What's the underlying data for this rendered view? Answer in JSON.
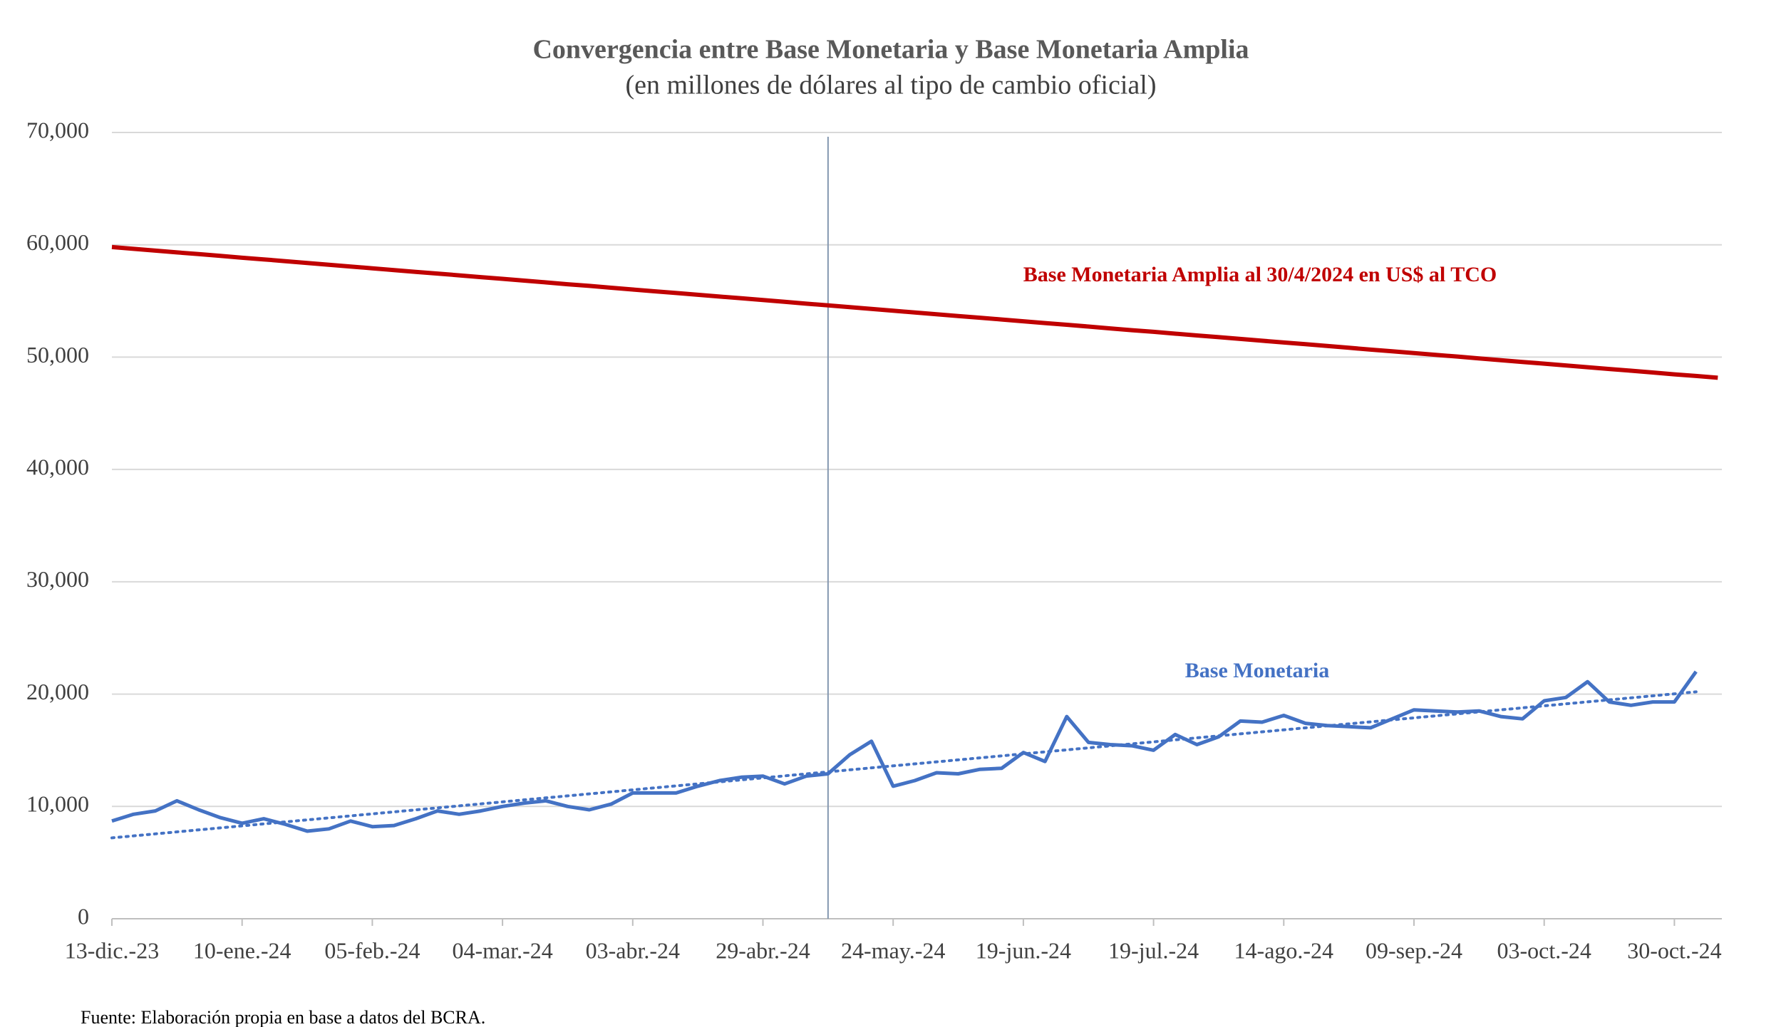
{
  "chart_data": {
    "type": "line",
    "title": "Convergencia entre Base Monetaria y Base Monetaria Amplia",
    "subtitle": "(en millones de dólares al tipo de cambio oficial)",
    "source": "Fuente: Elaboración propia en base a datos del BCRA.",
    "categories": [
      "13-dic.-23",
      null,
      null,
      null,
      null,
      null,
      "10-ene.-24",
      null,
      null,
      null,
      null,
      null,
      "05-feb.-24",
      null,
      null,
      null,
      null,
      null,
      "04-mar.-24",
      null,
      null,
      null,
      null,
      null,
      "03-abr.-24",
      null,
      null,
      null,
      null,
      null,
      "29-abr.-24",
      null,
      null,
      null,
      null,
      null,
      "24-may.-24",
      null,
      null,
      null,
      null,
      null,
      "19-jun.-24",
      null,
      null,
      null,
      null,
      null,
      "19-jul.-24",
      null,
      null,
      null,
      null,
      null,
      "14-ago.-24",
      null,
      null,
      null,
      null,
      null,
      "09-sep.-24",
      null,
      null,
      null,
      null,
      null,
      "03-oct.-24",
      null,
      null,
      null,
      null,
      null,
      "30-oct.-24",
      null,
      null
    ],
    "series": [
      {
        "name": "Base Monetaria Amplia al 30/4/2024 en US$ al TCO",
        "color": "#c00000",
        "values": [
          59800,
          59640,
          59480,
          59320,
          59170,
          59010,
          58850,
          58700,
          58540,
          58380,
          58220,
          58070,
          57910,
          57750,
          57590,
          57440,
          57280,
          57120,
          56970,
          56810,
          56650,
          56490,
          56340,
          56180,
          56020,
          55860,
          55710,
          55550,
          55390,
          55240,
          55080,
          54920,
          54760,
          54610,
          54450,
          54290,
          54130,
          53980,
          53820,
          53660,
          53510,
          53350,
          53190,
          53030,
          52880,
          52720,
          52560,
          52400,
          52250,
          52090,
          51930,
          51780,
          51620,
          51460,
          51300,
          51150,
          50990,
          50830,
          50670,
          50520,
          50360,
          50200,
          50050,
          49890,
          49730,
          49570,
          49420,
          49260,
          49100,
          48940,
          48790,
          48630,
          48470,
          48320,
          48160
        ]
      },
      {
        "name": "Base Monetaria",
        "color": "#4472c4",
        "values": [
          8700,
          9300,
          9600,
          10500,
          9700,
          9000,
          8500,
          8900,
          8400,
          7800,
          8000,
          8700,
          8200,
          8300,
          8900,
          9600,
          9300,
          9600,
          10000,
          10300,
          10500,
          10000,
          9700,
          10200,
          11200,
          11200,
          11200,
          11800,
          12300,
          12600,
          12700,
          12000,
          12700,
          12900,
          14600,
          15800,
          11800,
          12300,
          13000,
          12900,
          13300,
          13400,
          14800,
          14000,
          18000,
          15700,
          15500,
          15400,
          15000,
          16400,
          15500,
          16200,
          17600,
          17500,
          18100,
          17400,
          17200,
          17100,
          17000,
          17800,
          18600,
          18500,
          18400,
          18500,
          18000,
          17800,
          19400,
          19700,
          21100,
          19300,
          19000,
          19300,
          19300,
          22000,
          null
        ]
      }
    ],
    "trend": {
      "color": "#4472c4",
      "start": 7200,
      "end": 20200
    },
    "vline_index": 33,
    "ylim": [
      0,
      70000
    ],
    "yticks": [
      0,
      {
        "value": 10000,
        "label": "10,000"
      },
      {
        "value": 20000,
        "label": "20,000"
      },
      {
        "value": 30000,
        "label": "30,000"
      },
      {
        "value": 40000,
        "label": "40,000"
      },
      {
        "value": 50000,
        "label": "50,000"
      },
      {
        "value": 60000,
        "label": "60,000"
      },
      {
        "value": 70000,
        "label": "70,000"
      }
    ],
    "grid": true
  }
}
